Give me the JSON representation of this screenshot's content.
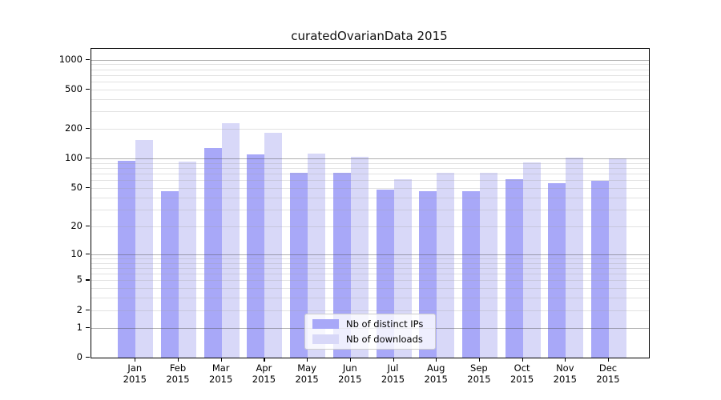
{
  "chart_data": {
    "type": "bar",
    "title": "curatedOvarianData 2015",
    "categories": [
      "Jan",
      "Feb",
      "Mar",
      "Apr",
      "May",
      "Jun",
      "Jul",
      "Aug",
      "Sep",
      "Oct",
      "Nov",
      "Dec"
    ],
    "year": "2015",
    "series": [
      {
        "key": "distinct-ips",
        "name": "Nb of distinct IPs",
        "color": "#a8a8f8",
        "values": [
          95,
          46,
          128,
          111,
          72,
          72,
          48,
          46,
          46,
          62,
          56,
          59
        ]
      },
      {
        "key": "downloads",
        "name": "Nb of downloads",
        "color": "#d8d8f8",
        "values": [
          155,
          93,
          228,
          181,
          113,
          105,
          62,
          71,
          72,
          91,
          102,
          100
        ]
      }
    ],
    "y_ticks": [
      0,
      1,
      2,
      5,
      10,
      20,
      50,
      100,
      200,
      500,
      1000
    ],
    "y_scale": "log10(value+1)",
    "y_axis_top_value": 1285,
    "grid_minor_values": [
      2,
      3,
      4,
      5,
      6,
      7,
      8,
      9,
      20,
      30,
      40,
      50,
      60,
      70,
      80,
      90,
      200,
      300,
      400,
      500,
      600,
      700,
      800,
      900
    ],
    "grid_major_values": [
      1,
      10,
      100,
      1000
    ],
    "legend_position": "bottom-center",
    "xlabel": "",
    "ylabel": ""
  },
  "legend": {
    "items": [
      {
        "label": "Nb of distinct IPs",
        "color": "#a8a8f8"
      },
      {
        "label": "Nb of downloads",
        "color": "#d8d8f8"
      }
    ]
  }
}
